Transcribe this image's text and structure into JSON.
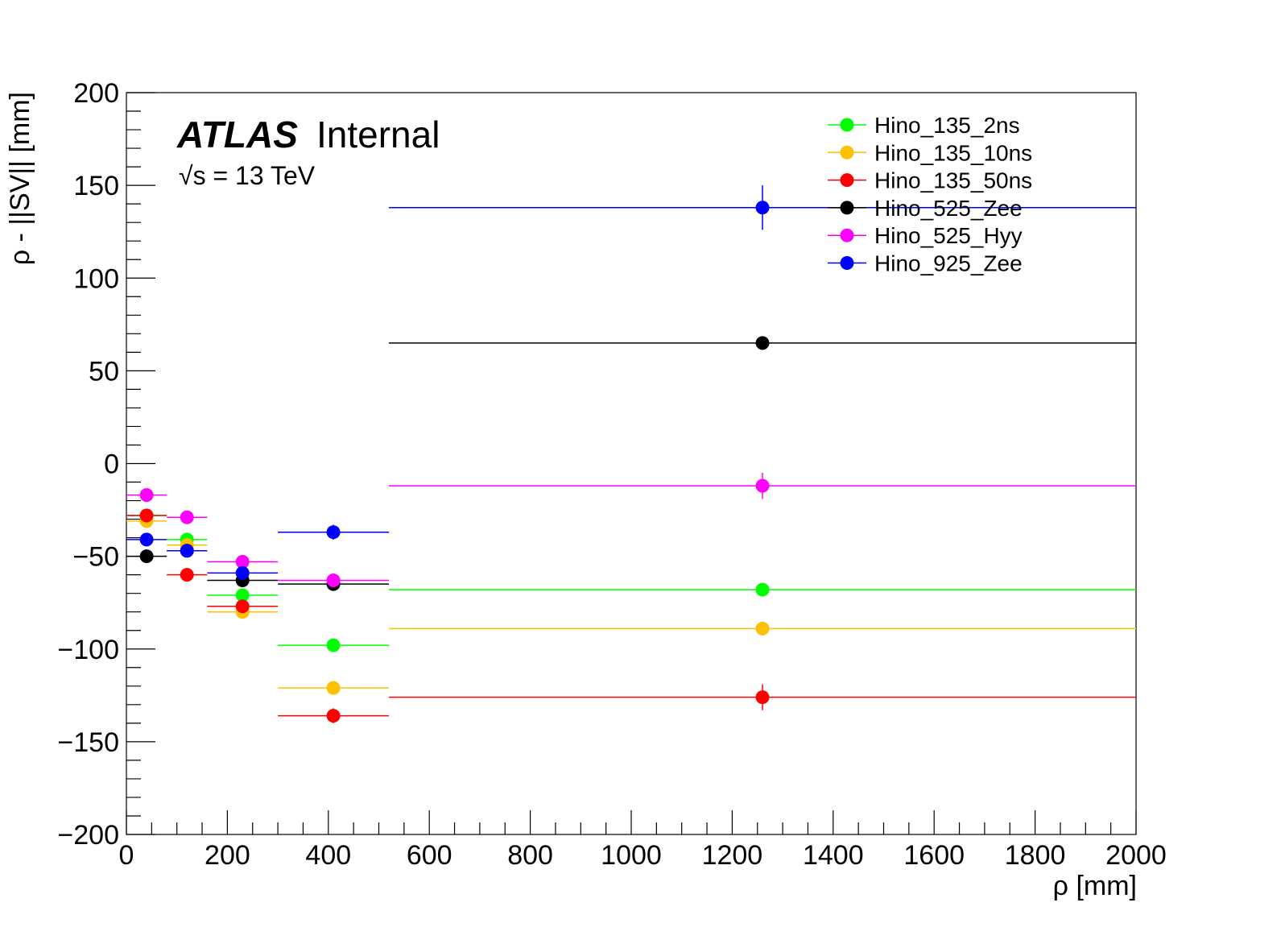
{
  "chart_data": {
    "type": "scatter",
    "xlabel": "ρ [mm]",
    "ylabel": "ρ - ||SV|| [mm]",
    "xlim": [
      0,
      2000
    ],
    "ylim": [
      -200,
      200
    ],
    "x_ticks": [
      "0",
      "200",
      "400",
      "600",
      "800",
      "1000",
      "1200",
      "1400",
      "1600",
      "1800",
      "2000"
    ],
    "y_ticks": [
      "200",
      "150",
      "100",
      "50",
      "0",
      "−50",
      "−100",
      "−150",
      "−200"
    ],
    "grid": false,
    "legend_position": "top-right",
    "annotation": {
      "experiment": "ATLAS",
      "status": "Internal",
      "energy": "√s = 13 TeV"
    },
    "series": [
      {
        "name": "Hino_135_2ns",
        "color": "#00ff00",
        "points": [
          {
            "x": 40,
            "y": -28,
            "xerr": 40,
            "yerr": 1.5
          },
          {
            "x": 120,
            "y": -41,
            "xerr": 40,
            "yerr": 1.5
          },
          {
            "x": 230,
            "y": -71,
            "xerr": 70,
            "yerr": 1.5
          },
          {
            "x": 410,
            "y": -98,
            "xerr": 110,
            "yerr": 2
          },
          {
            "x": 1260,
            "y": -68,
            "xerr": 740,
            "yerr": 3
          }
        ]
      },
      {
        "name": "Hino_135_10ns",
        "color": "#ffc000",
        "points": [
          {
            "x": 40,
            "y": -31,
            "xerr": 40,
            "yerr": 1.5
          },
          {
            "x": 120,
            "y": -44,
            "xerr": 40,
            "yerr": 1.5
          },
          {
            "x": 230,
            "y": -80,
            "xerr": 70,
            "yerr": 1.5
          },
          {
            "x": 410,
            "y": -121,
            "xerr": 110,
            "yerr": 2
          },
          {
            "x": 1260,
            "y": -89,
            "xerr": 740,
            "yerr": 3
          }
        ]
      },
      {
        "name": "Hino_135_50ns",
        "color": "#ff0000",
        "points": [
          {
            "x": 40,
            "y": -28,
            "xerr": 40,
            "yerr": 2
          },
          {
            "x": 120,
            "y": -60,
            "xerr": 40,
            "yerr": 2
          },
          {
            "x": 230,
            "y": -77,
            "xerr": 70,
            "yerr": 2
          },
          {
            "x": 410,
            "y": -136,
            "xerr": 110,
            "yerr": 4
          },
          {
            "x": 1260,
            "y": -126,
            "xerr": 740,
            "yerr": 7
          }
        ]
      },
      {
        "name": "Hino_525_Zee",
        "color": "#000000",
        "points": [
          {
            "x": 40,
            "y": -50,
            "xerr": 40,
            "yerr": 1.5
          },
          {
            "x": 120,
            "y": -47,
            "xerr": 40,
            "yerr": 1.5
          },
          {
            "x": 230,
            "y": -63,
            "xerr": 70,
            "yerr": 1.5
          },
          {
            "x": 410,
            "y": -65,
            "xerr": 110,
            "yerr": 2
          },
          {
            "x": 1260,
            "y": 65,
            "xerr": 740,
            "yerr": 3
          }
        ]
      },
      {
        "name": "Hino_525_Hyy",
        "color": "#ff00ff",
        "points": [
          {
            "x": 40,
            "y": -17,
            "xerr": 40,
            "yerr": 1.5
          },
          {
            "x": 120,
            "y": -29,
            "xerr": 40,
            "yerr": 1.5
          },
          {
            "x": 230,
            "y": -53,
            "xerr": 70,
            "yerr": 1.5
          },
          {
            "x": 410,
            "y": -63,
            "xerr": 110,
            "yerr": 2
          },
          {
            "x": 1260,
            "y": -12,
            "xerr": 740,
            "yerr": 7
          }
        ]
      },
      {
        "name": "Hino_925_Zee",
        "color": "#0000ff",
        "points": [
          {
            "x": 40,
            "y": -41,
            "xerr": 40,
            "yerr": 2
          },
          {
            "x": 120,
            "y": -47,
            "xerr": 40,
            "yerr": 2
          },
          {
            "x": 230,
            "y": -59,
            "xerr": 70,
            "yerr": 2
          },
          {
            "x": 410,
            "y": -37,
            "xerr": 110,
            "yerr": 4
          },
          {
            "x": 1260,
            "y": 138,
            "xerr": 740,
            "yerr": 12
          }
        ]
      }
    ]
  }
}
